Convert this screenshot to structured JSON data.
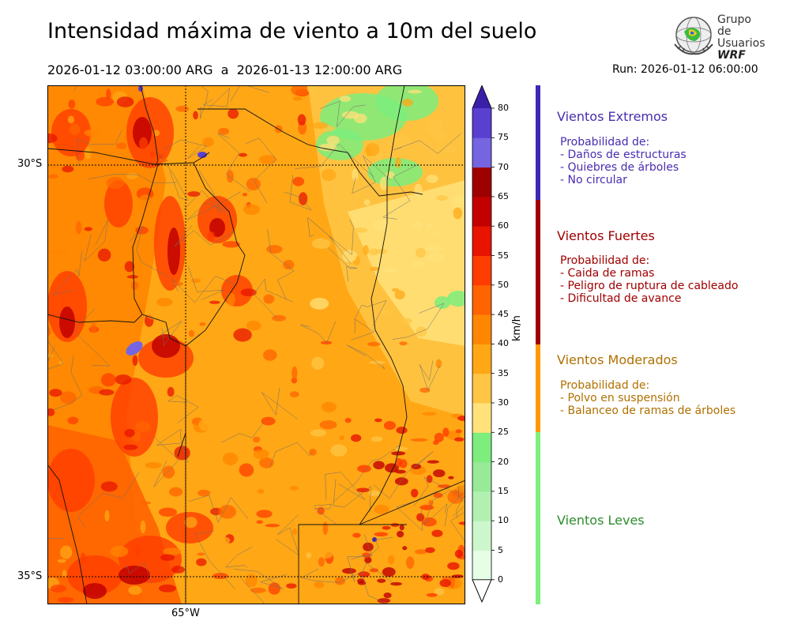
{
  "header": {
    "title": "Intensidad máxima de viento a 10m del suelo",
    "period": "2026-01-12 03:00:00 ARG  a  2026-01-13 12:00:00 ARG",
    "run": "Run: 2026-01-12 06:00:00"
  },
  "logo": {
    "line1": "Grupo de",
    "line2": "Usuarios",
    "line3": "WRF"
  },
  "map": {
    "lat_labels": [
      "30°S",
      "35°S"
    ],
    "lon_labels": [
      "65°W"
    ]
  },
  "colorbar": {
    "unit": "km/h",
    "ticks": [
      0,
      5,
      10,
      15,
      20,
      25,
      30,
      35,
      40,
      45,
      50,
      55,
      60,
      65,
      70,
      75,
      80
    ],
    "colors": [
      "#e6fde6",
      "#ccf7cc",
      "#b2f0b2",
      "#98ea98",
      "#7ded7d",
      "#ffe27a",
      "#ffc544",
      "#ffa715",
      "#ff8600",
      "#ff6400",
      "#ff3d00",
      "#e81400",
      "#c20000",
      "#9e0000",
      "#7565e0",
      "#5a40d0",
      "#4227b8"
    ],
    "extend_min_color": "#ffffff",
    "extend_max_color": "#3a20a8"
  },
  "categories": [
    {
      "title": "Vientos Extremos",
      "color": "#4a2cb0",
      "bar_color": "#3e28b6",
      "lines": [
        "Probabilidad de:",
        "- Daños de estructuras",
        "- Quiebres de árboles",
        "- No circular"
      ]
    },
    {
      "title": "Vientos Fuertes",
      "color": "#a00000",
      "bar_color": "#a00000",
      "lines": [
        "Probabilidad de:",
        "- Caida de ramas",
        "- Peligro de ruptura de cableado",
        "- Dificultad de avance"
      ]
    },
    {
      "title": "Vientos Moderados",
      "color": "#b07000",
      "bar_color": "#ff9a00",
      "lines": [
        "Probabilidad de:",
        "- Polvo en suspensión",
        "- Balanceo de ramas de árboles"
      ]
    },
    {
      "title": "Vientos Leves",
      "color": "#2e8b2e",
      "bar_color": "#7ef07e",
      "lines": []
    }
  ]
}
